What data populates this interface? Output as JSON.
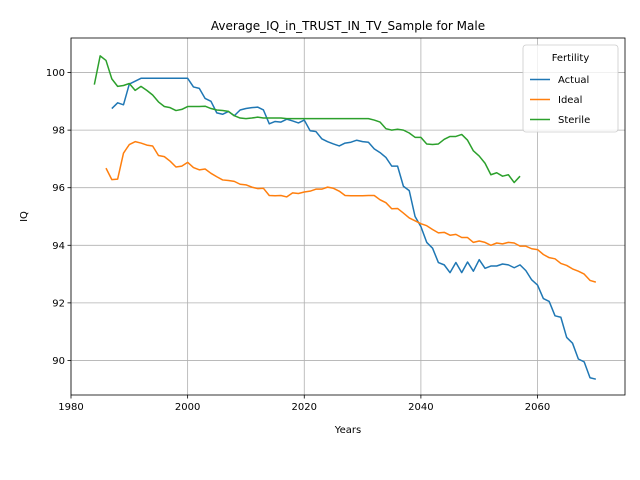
{
  "chart_data": {
    "type": "line",
    "title": "Average_IQ_in_TRUST_IN_TV_Sample for Male",
    "xlabel": "Years",
    "ylabel": "IQ",
    "xlim": [
      1980,
      2075
    ],
    "ylim": [
      88.8,
      101.2
    ],
    "xticks": [
      1980,
      2000,
      2020,
      2040,
      2060
    ],
    "yticks": [
      90,
      92,
      94,
      96,
      98,
      100
    ],
    "grid": true,
    "legend": {
      "title": "Fertility",
      "placement": "top-right"
    },
    "series": [
      {
        "name": "Actual",
        "color": "#1f77b4",
        "x": [
          1987,
          1988,
          1989,
          1990,
          1991,
          1992,
          1993,
          1994,
          1995,
          1996,
          1997,
          1998,
          1999,
          2000,
          2001,
          2002,
          2003,
          2004,
          2005,
          2006,
          2007,
          2008,
          2009,
          2010,
          2011,
          2012,
          2013,
          2014,
          2015,
          2016,
          2017,
          2018,
          2019,
          2020,
          2021,
          2022,
          2023,
          2024,
          2025,
          2026,
          2027,
          2028,
          2029,
          2030,
          2031,
          2032,
          2033,
          2034,
          2035,
          2036,
          2037,
          2038,
          2039,
          2040,
          2041,
          2042,
          2043,
          2044,
          2045,
          2046,
          2047,
          2048,
          2049,
          2050,
          2051,
          2052,
          2053,
          2054,
          2055,
          2056,
          2057,
          2058,
          2059,
          2060,
          2061,
          2062,
          2063,
          2064,
          2065,
          2066,
          2067,
          2068,
          2069,
          2070
        ],
        "values": [
          98.75,
          98.95,
          98.88,
          99.6,
          99.7,
          99.8,
          99.8,
          99.8,
          99.8,
          99.8,
          99.8,
          99.8,
          99.8,
          99.8,
          99.5,
          99.45,
          99.1,
          99.0,
          98.6,
          98.55,
          98.65,
          98.5,
          98.7,
          98.75,
          98.78,
          98.8,
          98.7,
          98.22,
          98.3,
          98.28,
          98.38,
          98.32,
          98.25,
          98.35,
          97.98,
          97.95,
          97.7,
          97.6,
          97.52,
          97.45,
          97.55,
          97.58,
          97.65,
          97.6,
          97.58,
          97.35,
          97.22,
          97.05,
          96.75,
          96.75,
          96.05,
          95.9,
          95.0,
          94.65,
          94.1,
          93.9,
          93.4,
          93.32,
          93.05,
          93.4,
          93.05,
          93.42,
          93.1,
          93.5,
          93.2,
          93.28,
          93.28,
          93.35,
          93.32,
          93.22,
          93.32,
          93.12,
          92.8,
          92.62,
          92.15,
          92.05,
          91.55,
          91.5,
          90.8,
          90.6,
          90.05,
          89.95,
          89.4,
          89.35
        ]
      },
      {
        "name": "Ideal",
        "color": "#ff7f0e",
        "x": [
          1986,
          1987,
          1988,
          1989,
          1990,
          1991,
          1992,
          1993,
          1994,
          1995,
          1996,
          1997,
          1998,
          1999,
          2000,
          2001,
          2002,
          2003,
          2004,
          2005,
          2006,
          2007,
          2008,
          2009,
          2010,
          2011,
          2012,
          2013,
          2014,
          2015,
          2016,
          2017,
          2018,
          2019,
          2020,
          2021,
          2022,
          2023,
          2024,
          2025,
          2026,
          2027,
          2028,
          2029,
          2030,
          2031,
          2032,
          2033,
          2034,
          2035,
          2036,
          2037,
          2038,
          2039,
          2040,
          2041,
          2042,
          2043,
          2044,
          2045,
          2046,
          2047,
          2048,
          2049,
          2050,
          2051,
          2052,
          2053,
          2054,
          2055,
          2056,
          2057,
          2058,
          2059,
          2060,
          2061,
          2062,
          2063,
          2064,
          2065,
          2066,
          2067,
          2068,
          2069,
          2070
        ],
        "values": [
          96.68,
          96.28,
          96.3,
          97.2,
          97.5,
          97.6,
          97.55,
          97.48,
          97.45,
          97.12,
          97.08,
          96.92,
          96.72,
          96.75,
          96.88,
          96.7,
          96.62,
          96.65,
          96.5,
          96.38,
          96.27,
          96.25,
          96.22,
          96.12,
          96.1,
          96.02,
          95.97,
          95.98,
          95.73,
          95.72,
          95.73,
          95.68,
          95.82,
          95.8,
          95.85,
          95.88,
          95.95,
          95.95,
          96.02,
          95.98,
          95.88,
          95.73,
          95.72,
          95.72,
          95.72,
          95.73,
          95.73,
          95.58,
          95.48,
          95.27,
          95.28,
          95.12,
          94.95,
          94.85,
          94.75,
          94.68,
          94.55,
          94.43,
          94.45,
          94.35,
          94.38,
          94.27,
          94.27,
          94.1,
          94.15,
          94.1,
          94.0,
          94.08,
          94.05,
          94.1,
          94.08,
          93.97,
          93.97,
          93.88,
          93.85,
          93.68,
          93.57,
          93.53,
          93.37,
          93.3,
          93.18,
          93.1,
          93.0,
          92.78,
          92.72
        ]
      },
      {
        "name": "Sterile",
        "color": "#2ca02c",
        "x": [
          1984,
          1985,
          1986,
          1987,
          1988,
          1989,
          1990,
          1991,
          1992,
          1993,
          1994,
          1995,
          1996,
          1997,
          1998,
          1999,
          2000,
          2001,
          2002,
          2003,
          2004,
          2005,
          2006,
          2007,
          2008,
          2009,
          2010,
          2011,
          2012,
          2013,
          2014,
          2015,
          2016,
          2017,
          2018,
          2019,
          2020,
          2021,
          2022,
          2023,
          2024,
          2025,
          2026,
          2027,
          2028,
          2029,
          2030,
          2031,
          2032,
          2033,
          2034,
          2035,
          2036,
          2037,
          2038,
          2039,
          2040,
          2041,
          2042,
          2043,
          2044,
          2045,
          2046,
          2047,
          2048,
          2049,
          2050,
          2051,
          2052,
          2053,
          2054,
          2055,
          2056,
          2057
        ],
        "values": [
          99.58,
          100.58,
          100.42,
          99.78,
          99.52,
          99.55,
          99.62,
          99.38,
          99.52,
          99.38,
          99.22,
          98.98,
          98.82,
          98.78,
          98.68,
          98.72,
          98.82,
          98.82,
          98.82,
          98.83,
          98.75,
          98.7,
          98.68,
          98.65,
          98.5,
          98.42,
          98.4,
          98.42,
          98.45,
          98.42,
          98.42,
          98.42,
          98.42,
          98.4,
          98.4,
          98.4,
          98.4,
          98.4,
          98.4,
          98.4,
          98.4,
          98.4,
          98.4,
          98.4,
          98.4,
          98.4,
          98.4,
          98.4,
          98.35,
          98.28,
          98.05,
          98.0,
          98.03,
          98.0,
          97.9,
          97.75,
          97.75,
          97.52,
          97.5,
          97.52,
          97.68,
          97.78,
          97.78,
          97.85,
          97.65,
          97.28,
          97.1,
          96.85,
          96.45,
          96.52,
          96.4,
          96.45,
          96.18,
          96.4
        ]
      }
    ]
  }
}
